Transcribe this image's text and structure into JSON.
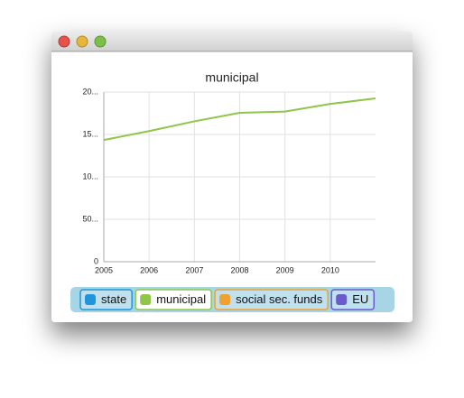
{
  "chart_data": {
    "type": "line",
    "title": "municipal",
    "x": [
      2005,
      2006,
      2007,
      2008,
      2009,
      2010,
      2011
    ],
    "series": [
      {
        "name": "municipal",
        "color": "#8fc64a",
        "values": [
          14350,
          15400,
          16550,
          17550,
          17700,
          18600,
          19250
        ]
      }
    ],
    "xlim": [
      2005,
      2011
    ],
    "xticks": [
      2005,
      2006,
      2007,
      2008,
      2009,
      2010
    ],
    "ylim": [
      0,
      20000
    ],
    "yticks": [
      0,
      {
        "value": 5000,
        "label": "50..."
      },
      {
        "value": 10000,
        "label": "10..."
      },
      {
        "value": 15000,
        "label": "15..."
      },
      {
        "value": 20000,
        "label": "20..."
      }
    ],
    "grid": true,
    "legend": [
      {
        "name": "state",
        "color": "#1f96dc"
      },
      {
        "name": "municipal",
        "color": "#8fc64a"
      },
      {
        "name": "social sec. funds",
        "color": "#f0a030"
      },
      {
        "name": "EU",
        "color": "#6a5acd"
      }
    ]
  }
}
